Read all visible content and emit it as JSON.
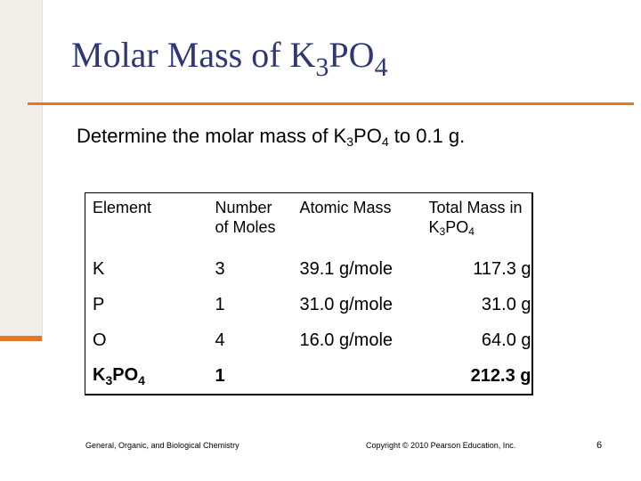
{
  "title": {
    "text": "Molar Mass of K",
    "sub": "3",
    "rest": "PO",
    "sub2": "4"
  },
  "prompt": {
    "pre": "Determine the molar mass of K",
    "sub1": "3",
    "mid": "PO",
    "sub2": "4",
    "post": " to 0.1 g."
  },
  "table": {
    "headers": {
      "element": "Element",
      "moles_line1": "Number",
      "moles_line2": "of Moles",
      "atomic": "Atomic Mass",
      "total_line1": "Total Mass in",
      "total_k": "K",
      "total_sub1": "3",
      "total_po": "PO",
      "total_sub2": "4"
    },
    "rows": [
      {
        "element": "K",
        "moles": "3",
        "atomic": "39.1 g/mole",
        "total": "117.3 g"
      },
      {
        "element": "P",
        "moles": "1",
        "atomic": "31.0 g/mole",
        "total": "31.0 g"
      },
      {
        "element": "O",
        "moles": "4",
        "atomic": "16.0 g/mole",
        "total": "64.0 g"
      }
    ],
    "formula_row": {
      "k": "K",
      "sub1": "3",
      "po": "PO",
      "sub2": "4",
      "moles": "1",
      "atomic": "",
      "total": "212.3 g"
    }
  },
  "footer": {
    "left": "General, Organic, and Biological Chemistry",
    "copyright": "Copyright © 2010 Pearson Education, Inc.",
    "page": "6"
  },
  "colors": {
    "title": "#2f3777",
    "accent": "#e07a26",
    "sidebar": "#f1eee9"
  }
}
